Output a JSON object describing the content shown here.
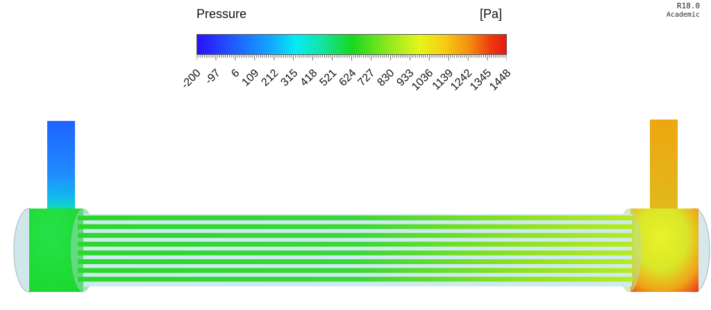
{
  "legend": {
    "title": "Pressure",
    "unit": "[Pa]",
    "ticks": [
      "-200",
      "-97",
      "6",
      "109",
      "212",
      "315",
      "418",
      "521",
      "624",
      "727",
      "830",
      "933",
      "1036",
      "1139",
      "1242",
      "1345",
      "1448"
    ]
  },
  "watermark": {
    "version": "R18.0",
    "edition": "Academic"
  },
  "colors": {
    "low": "#2a10ff",
    "mid": "#17d81f",
    "high": "#e61a10"
  }
}
